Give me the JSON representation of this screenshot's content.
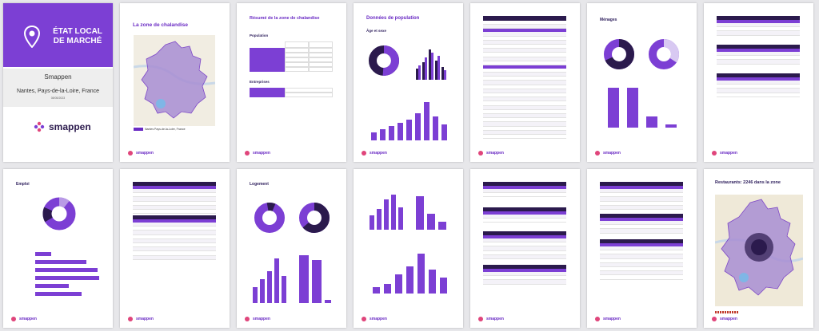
{
  "cover": {
    "title": "ÉTAT LOCAL DE MARCHÉ",
    "brand": "Smappen",
    "location": "Nantes, Pays-de-la-Loire, France",
    "date": "08/05/2023",
    "logo_text": "smappen"
  },
  "pages": {
    "zone": {
      "title": "La zone de chalandise",
      "caption": "Nantes Pays-de-la-Loire, France"
    },
    "summary": {
      "title": "Résumé de la zone de chalandise",
      "section_population": "Population",
      "section_entreprises": "Entreprises"
    },
    "population": {
      "title": "Données de population",
      "subtitle": "Âge et sexe"
    },
    "menages": {
      "title": "Ménages"
    },
    "emploi": {
      "title": "Emploi"
    },
    "logement": {
      "title": "Logement"
    },
    "restaurants": {
      "title": "Restaurants: 2246 dans la zone"
    }
  },
  "footer": {
    "brand": "smappen"
  },
  "colors": {
    "primary": "#7c3fd4",
    "dark": "#2b1a4d",
    "light": "#b99ae6",
    "accent": "#e0457b"
  }
}
